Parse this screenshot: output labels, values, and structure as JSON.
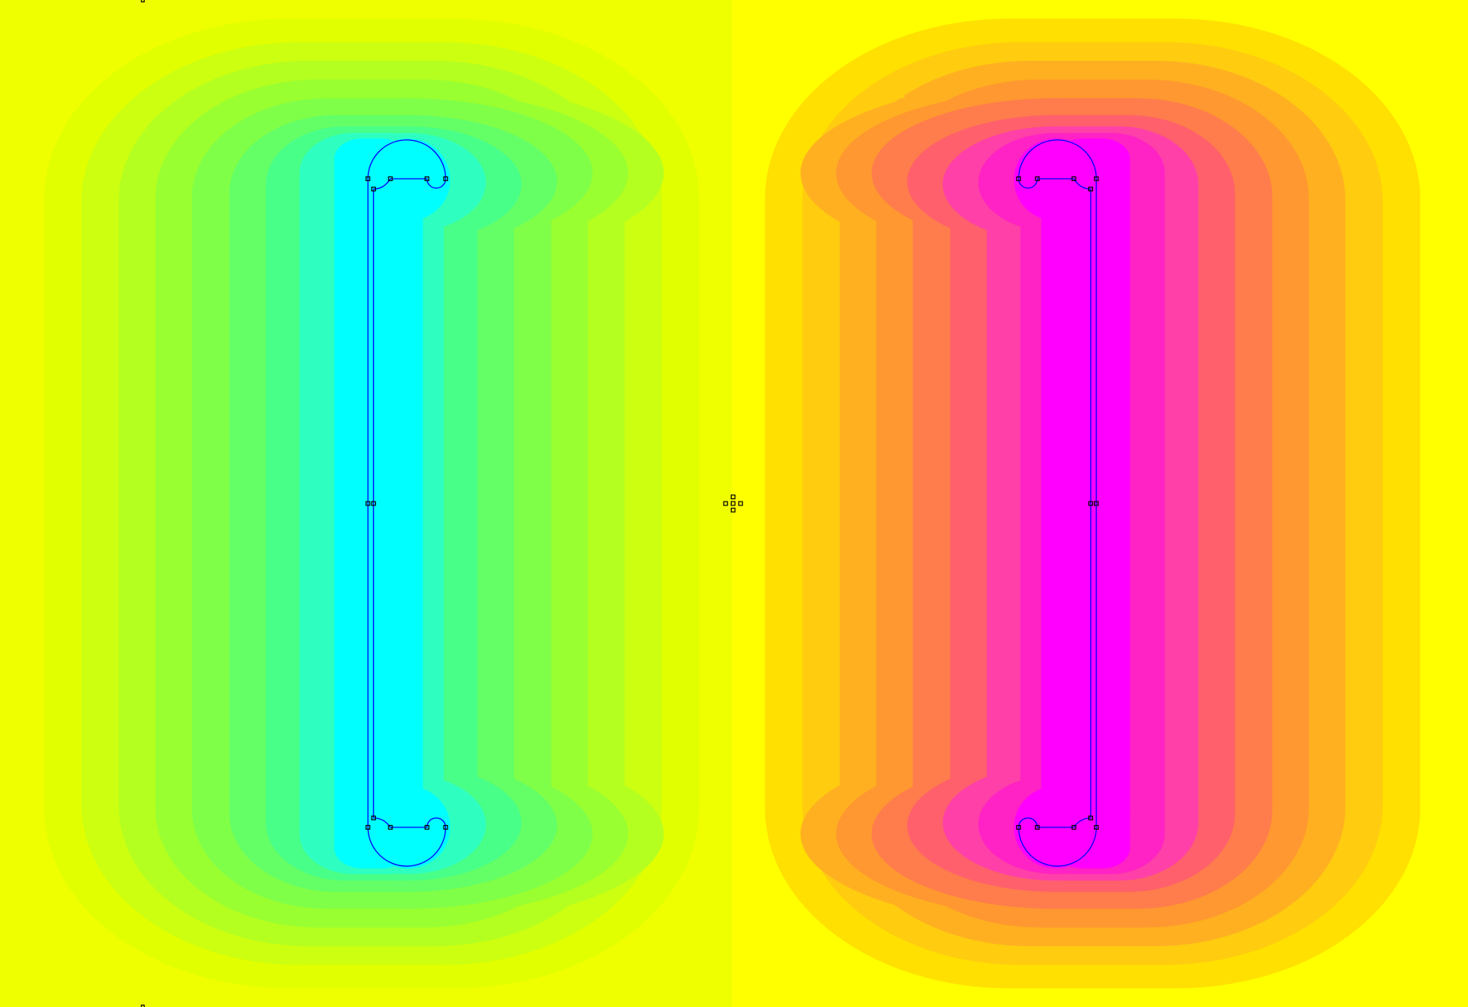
{
  "view": {
    "type": "field contour plot",
    "background_left": "#f0ff00",
    "background_right": "#ffff00",
    "geometry_color": "#0000ff",
    "node_color": "#000000"
  },
  "contours": {
    "left_levels_outer_to_inner": [
      "#e2ff00",
      "#ccff10",
      "#b4ff20",
      "#9aff30",
      "#80ff48",
      "#64ff66",
      "#48ff88",
      "#2effc0",
      "#00ffff"
    ],
    "right_levels_outer_to_inner": [
      "#ffe000",
      "#ffcc10",
      "#ffb020",
      "#ff9830",
      "#ff7c4c",
      "#ff606c",
      "#ff40a8",
      "#ff22c4",
      "#ff00ff"
    ]
  },
  "icons": {
    "node_marker": "square-node-icon",
    "origin_marker": "crosshair-node-icon"
  }
}
